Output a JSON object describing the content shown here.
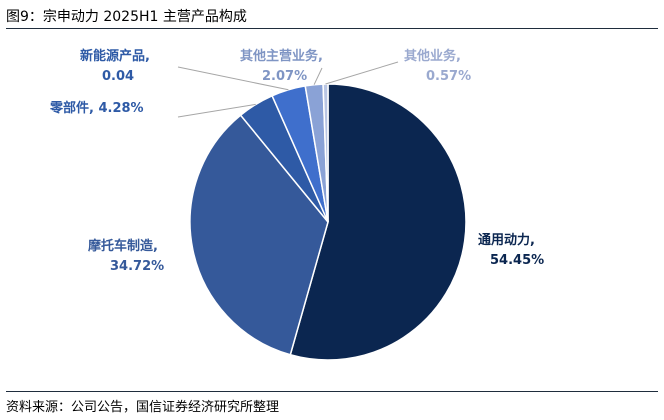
{
  "figure": {
    "title": "图9：宗申动力 2025H1 主营产品构成",
    "source": "资料来源：公司公告，国信证券经济研究所整理"
  },
  "chart_data": {
    "type": "pie",
    "slices": [
      {
        "name": "通用动力",
        "value": 54.45,
        "label_line1": "通用动力,",
        "label_line2": "54.45%",
        "color": "#0b2650",
        "label_color": "#0b2650"
      },
      {
        "name": "摩托车制造",
        "value": 34.72,
        "label_line1": "摩托车制造,",
        "label_line2": "34.72%",
        "color": "#35599a",
        "label_color": "#35599a"
      },
      {
        "name": "零部件",
        "value": 4.28,
        "label_line1": "零部件, 4.28%",
        "label_line2": "",
        "color": "#2e5aa6",
        "label_color": "#2e5aa6"
      },
      {
        "name": "新能源产品",
        "value": 4.0,
        "label_line1": "新能源产品,",
        "label_line2": "0.04",
        "color": "#3f6fcc",
        "label_color": "#2e5aa6"
      },
      {
        "name": "其他主营业务",
        "value": 2.07,
        "label_line1": "其他主营业务,",
        "label_line2": "2.07%",
        "color": "#8aa2d6",
        "label_color": "#7f95c4"
      },
      {
        "name": "其他业务",
        "value": 0.57,
        "label_line1": "其他业务,",
        "label_line2": "0.57%",
        "color": "#b9c6e4",
        "label_color": "#9aa9cf"
      }
    ]
  }
}
